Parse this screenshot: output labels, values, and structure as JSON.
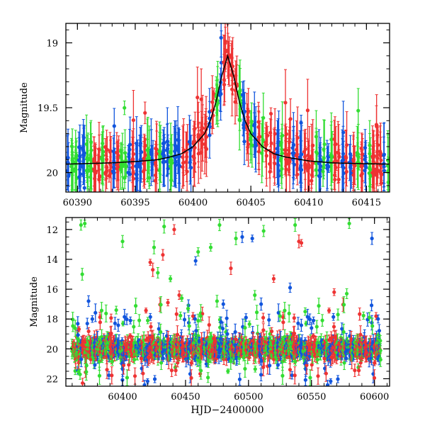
{
  "chart_data": [
    {
      "type": "scatter",
      "xlabel": "",
      "ylabel": "Magnitude",
      "xlim": [
        60389.0,
        60417.0
      ],
      "ylim": [
        20.15,
        18.85
      ],
      "y_inverted": true,
      "xticks": [
        60390,
        60395,
        60400,
        60405,
        60410,
        60415
      ],
      "xtick_labels": [
        "60390",
        "60395",
        "60400",
        "60405",
        "60410",
        "60415"
      ],
      "yticks": [
        19,
        19.5,
        20
      ],
      "ytick_labels": [
        "19",
        "19.5",
        "20"
      ],
      "colors": {
        "green": "#33dd33",
        "red": "#ee3333",
        "blue": "#1155dd",
        "model": "#000000"
      },
      "model_curve": {
        "peak_x": 60403.0,
        "peak_mag": 19.1,
        "baseline_mag": 19.94,
        "x": [
          60389,
          60391,
          60393,
          60395,
          60397,
          60398,
          60399,
          60400,
          60401,
          60401.5,
          60402,
          60402.5,
          60403,
          60403.5,
          60404,
          60404.5,
          60405,
          60406,
          60407,
          60408,
          60410,
          60412,
          60414,
          60417
        ],
        "y": [
          19.935,
          19.93,
          19.925,
          19.915,
          19.9,
          19.88,
          19.855,
          19.8,
          19.7,
          19.6,
          19.45,
          19.25,
          19.1,
          19.25,
          19.45,
          19.6,
          19.7,
          19.8,
          19.855,
          19.88,
          19.91,
          19.925,
          19.93,
          19.935
        ]
      }
    },
    {
      "type": "scatter",
      "xlabel": "HJD−2400000",
      "ylabel": "Magnitude",
      "xlim": [
        60355,
        60612
      ],
      "ylim": [
        22.5,
        11.2
      ],
      "y_inverted": true,
      "xticks": [
        60400,
        60450,
        60500,
        60550,
        60600
      ],
      "xtick_labels": [
        "60400",
        "60450",
        "60500",
        "60550",
        "60600"
      ],
      "yticks": [
        12,
        14,
        16,
        18,
        20,
        22
      ],
      "ytick_labels": [
        "12",
        "14",
        "16",
        "18",
        "20",
        "22"
      ],
      "baseline_mag": 20.0,
      "season_x": [
        60360,
        60605
      ],
      "outliers": [
        {
          "x": 60367,
          "y": 11.7,
          "color": "green"
        },
        {
          "x": 60370,
          "y": 11.6,
          "color": "green"
        },
        {
          "x": 60368,
          "y": 15.0,
          "color": "green"
        },
        {
          "x": 60373,
          "y": 16.8,
          "color": "blue"
        },
        {
          "x": 60372,
          "y": 18.3,
          "color": "blue"
        },
        {
          "x": 60376,
          "y": 18.0,
          "color": "blue"
        },
        {
          "x": 60395,
          "y": 17.4,
          "color": "green"
        },
        {
          "x": 60400,
          "y": 12.8,
          "color": "green"
        },
        {
          "x": 60422,
          "y": 14.2,
          "color": "red"
        },
        {
          "x": 60424,
          "y": 14.7,
          "color": "red"
        },
        {
          "x": 60420,
          "y": 18.1,
          "color": "green"
        },
        {
          "x": 60428,
          "y": 14.9,
          "color": "green"
        },
        {
          "x": 60425,
          "y": 13.2,
          "color": "green"
        },
        {
          "x": 60433,
          "y": 11.8,
          "color": "green"
        },
        {
          "x": 60432,
          "y": 13.7,
          "color": "red"
        },
        {
          "x": 60438,
          "y": 15.3,
          "color": "green"
        },
        {
          "x": 60441,
          "y": 12.0,
          "color": "red"
        },
        {
          "x": 60436,
          "y": 16.9,
          "color": "red"
        },
        {
          "x": 60445,
          "y": 16.4,
          "color": "red"
        },
        {
          "x": 60447,
          "y": 16.6,
          "color": "green"
        },
        {
          "x": 60452,
          "y": 17.3,
          "color": "green"
        },
        {
          "x": 60458,
          "y": 14.1,
          "color": "blue"
        },
        {
          "x": 60460,
          "y": 13.5,
          "color": "green"
        },
        {
          "x": 60462,
          "y": 17.8,
          "color": "green"
        },
        {
          "x": 60470,
          "y": 13.2,
          "color": "green"
        },
        {
          "x": 60475,
          "y": 16.8,
          "color": "green"
        },
        {
          "x": 60477,
          "y": 11.7,
          "color": "green"
        },
        {
          "x": 60480,
          "y": 17.0,
          "color": "blue"
        },
        {
          "x": 60486,
          "y": 14.6,
          "color": "red"
        },
        {
          "x": 60490,
          "y": 12.6,
          "color": "green"
        },
        {
          "x": 60495,
          "y": 12.5,
          "color": "blue"
        },
        {
          "x": 60498,
          "y": 17.9,
          "color": "blue"
        },
        {
          "x": 60503,
          "y": 12.6,
          "color": "blue"
        },
        {
          "x": 60505,
          "y": 16.4,
          "color": "green"
        },
        {
          "x": 60510,
          "y": 17.0,
          "color": "blue"
        },
        {
          "x": 60512,
          "y": 12.1,
          "color": "green"
        },
        {
          "x": 60520,
          "y": 15.3,
          "color": "red"
        },
        {
          "x": 60525,
          "y": 17.8,
          "color": "green"
        },
        {
          "x": 60533,
          "y": 15.9,
          "color": "blue"
        },
        {
          "x": 60537,
          "y": 11.7,
          "color": "green"
        },
        {
          "x": 60540,
          "y": 12.8,
          "color": "red"
        },
        {
          "x": 60542,
          "y": 12.9,
          "color": "red"
        },
        {
          "x": 60545,
          "y": 17.5,
          "color": "green"
        },
        {
          "x": 60550,
          "y": 18.6,
          "color": "blue"
        },
        {
          "x": 60568,
          "y": 16.2,
          "color": "red"
        },
        {
          "x": 60571,
          "y": 17.7,
          "color": "green"
        },
        {
          "x": 60578,
          "y": 16.3,
          "color": "green"
        },
        {
          "x": 60580,
          "y": 11.6,
          "color": "green"
        },
        {
          "x": 60598,
          "y": 12.6,
          "color": "blue"
        },
        {
          "x": 60596,
          "y": 17.9,
          "color": "green"
        }
      ]
    }
  ]
}
